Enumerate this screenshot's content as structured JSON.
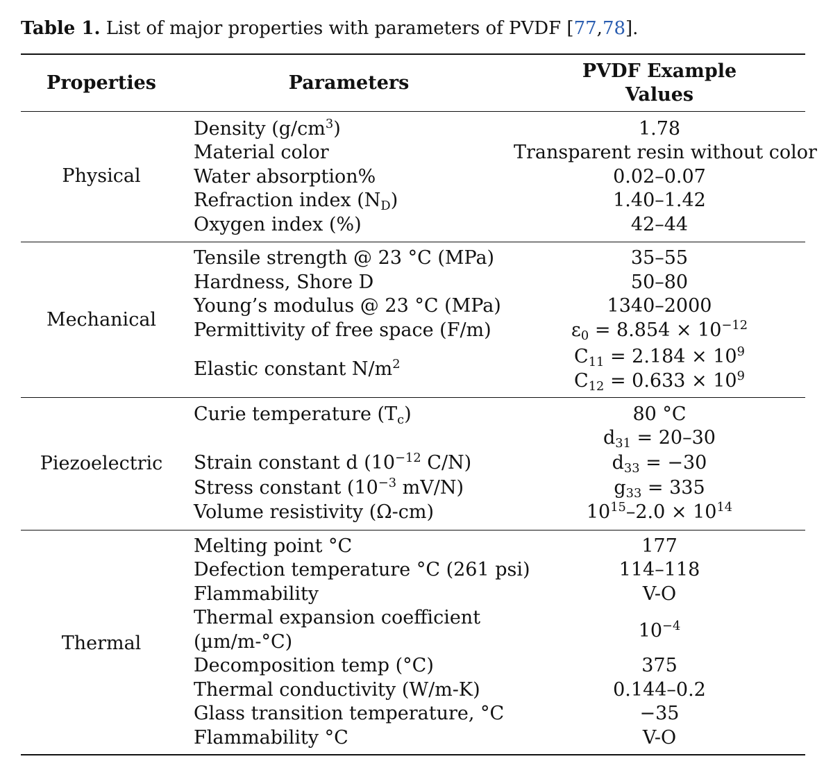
{
  "caption": {
    "lead": "Table 1.",
    "text": " List of major properties with parameters of PVDF [",
    "ref1": "77",
    "sep": ",",
    "ref2": "78",
    "close": "]."
  },
  "header": {
    "properties": "Properties",
    "parameters": "Parameters",
    "values_line1": "PVDF Example",
    "values_line2": "Values"
  },
  "groups": {
    "physical": "Physical",
    "mechanical": "Mechanical",
    "piezoelectric": "Piezoelectric",
    "thermal": "Thermal"
  },
  "physical": {
    "density_label": "Density (g/cm",
    "density_sup": "3",
    "density_close": ")",
    "density_value": "1.78",
    "color_label": "Material color",
    "color_value": "Transparent resin without color",
    "water_label": "Water absorption%",
    "water_value": "0.02–0.07",
    "refraction_label": "Refraction index (N",
    "refraction_sub": "D",
    "refraction_close": ")",
    "refraction_value": "1.40–1.42",
    "oxygen_label": "Oxygen index (%)",
    "oxygen_value": "42–44"
  },
  "mechanical": {
    "tensile_label": "Tensile strength @ 23 °C (MPa)",
    "tensile_value": "35–55",
    "hardness_label": "Hardness, Shore D",
    "hardness_value": "50–80",
    "young_label": "Young’s modulus @ 23 °C (MPa)",
    "young_value": "1340–2000",
    "permittivity_label": "Permittivity of free space (F/m)",
    "permittivity_sym": "ε",
    "permittivity_sub": "0",
    "permittivity_val": " = 8.854 × 10",
    "permittivity_sup": "−12",
    "elastic_label": "Elastic constant N/m",
    "elastic_sup": "2",
    "c11_sym": "C",
    "c11_sub": "11",
    "c11_val": " = 2.184 × 10",
    "c11_sup": "9",
    "c12_sym": "C",
    "c12_sub": "12",
    "c12_val": " = 0.633 × 10",
    "c12_sup": "9"
  },
  "piezoelectric": {
    "curie_label": "Curie temperature (T",
    "curie_sub": "c",
    "curie_close": ")",
    "curie_value": "80 °C",
    "d31_sym": "d",
    "d31_sub": "31",
    "d31_val": " = 20–30",
    "strain_label": "Strain constant d (10",
    "strain_sup": "−12",
    "strain_close": " C/N)",
    "d33_sym": "d",
    "d33_sub": "33",
    "d33_val": " = −30",
    "stress_label": "Stress constant (10",
    "stress_sup": "−3",
    "stress_close": " mV/N)",
    "g33_sym": "g",
    "g33_sub": "33",
    "g33_val": " = 335",
    "resistivity_label": "Volume resistivity (Ω-cm)",
    "resistivity_base1": "10",
    "resistivity_sup1": "15",
    "resistivity_mid": "–2.0 × 10",
    "resistivity_sup2": "14"
  },
  "thermal": {
    "melting_label": "Melting point °C",
    "melting_value": "177",
    "defection_label": "Defection temperature °C (261 psi)",
    "defection_value": "114–118",
    "flammability_label": "Flammability",
    "flammability_value": "V-O",
    "expansion_label_1": "Thermal expansion coefficient",
    "expansion_label_2": "(µm/m-°C)",
    "expansion_base": "10",
    "expansion_sup": "−4",
    "decomposition_label": "Decomposition temp (°C)",
    "decomposition_value": "375",
    "conductivity_label": "Thermal conductivity (W/m-K)",
    "conductivity_value": "0.144–0.2",
    "glass_label": "Glass transition temperature, °C",
    "glass_value": "−35",
    "flammability2_label": "Flammability °C",
    "flammability2_value": "V-O"
  }
}
